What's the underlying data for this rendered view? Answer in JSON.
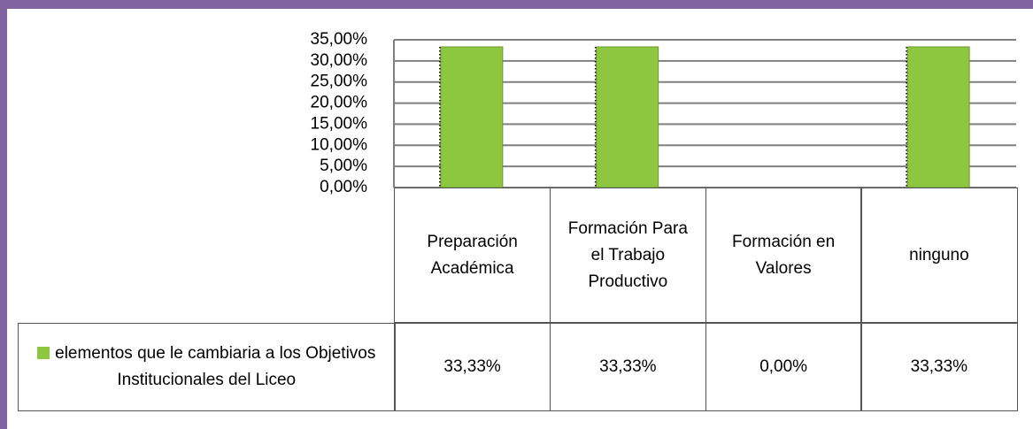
{
  "chart_data": {
    "type": "bar",
    "categories": [
      "Preparación Académica",
      "Formación Para el Trabajo Productivo",
      "Formación en Valores",
      "ninguno"
    ],
    "series": [
      {
        "name": "elementos que le cambiaria a los Objetivos Institucionales del Liceo",
        "color": "#8dc63f",
        "values": [
          33.33,
          33.33,
          0,
          33.33
        ],
        "value_labels": [
          "33,33%",
          "33,33%",
          "0,00%",
          "33,33%"
        ]
      }
    ],
    "ylim": [
      0,
      35
    ],
    "yticks": [
      {
        "value": 0,
        "label": "0,00%"
      },
      {
        "value": 5,
        "label": "5,00%"
      },
      {
        "value": 10,
        "label": "10,00%"
      },
      {
        "value": 15,
        "label": "15,00%"
      },
      {
        "value": 20,
        "label": "20,00%"
      },
      {
        "value": 25,
        "label": "25,00%"
      },
      {
        "value": 30,
        "label": "30,00%"
      },
      {
        "value": 35,
        "label": "35,00%"
      }
    ],
    "grid": true
  }
}
